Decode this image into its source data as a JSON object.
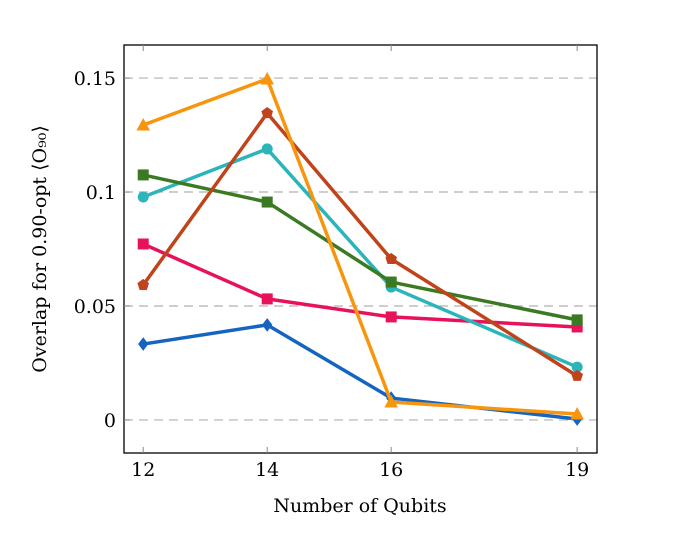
{
  "chart_data": {
    "type": "line",
    "xlabel": "Number of Qubits",
    "ylabel": "Overlap for 0.90-opt ⟨O₉₀⟩",
    "x": [
      12,
      14,
      16,
      19
    ],
    "xticks": [
      "12",
      "14",
      "16",
      "19"
    ],
    "yticks": [
      0,
      0.05,
      0.1,
      0.15
    ],
    "ytick_labels": [
      "0",
      "0.05",
      "0.1",
      "0.15"
    ],
    "xlim": [
      11.69,
      19.32
    ],
    "ylim": [
      -0.0145,
      0.1645
    ],
    "grid": "horizontal dashed",
    "series": [
      {
        "color": "#1565c0",
        "marker": "diamond",
        "values": [
          0.0333,
          0.0417,
          0.0096,
          0.0004
        ]
      },
      {
        "color": "#e8125c",
        "marker": "square",
        "values": [
          0.0772,
          0.0531,
          0.0452,
          0.0408
        ]
      },
      {
        "color": "#2bb5bb",
        "marker": "circle",
        "values": [
          0.0978,
          0.1189,
          0.0583,
          0.0232
        ]
      },
      {
        "color": "#3a7a22",
        "marker": "square",
        "values": [
          0.1075,
          0.0956,
          0.0605,
          0.0439
        ]
      },
      {
        "color": "#c0431a",
        "marker": "pentagon",
        "values": [
          0.0592,
          0.1346,
          0.0706,
          0.0193
        ]
      },
      {
        "color": "#f7960e",
        "marker": "triangle",
        "values": [
          0.1294,
          0.1496,
          0.0079,
          0.0026
        ]
      }
    ]
  }
}
